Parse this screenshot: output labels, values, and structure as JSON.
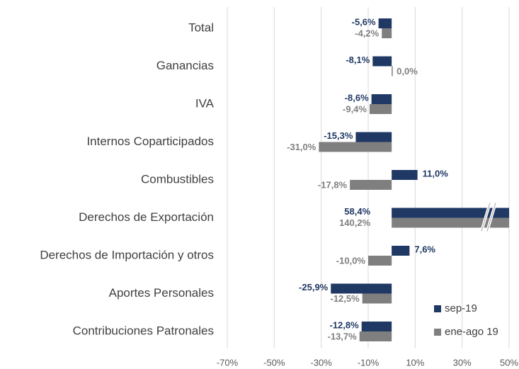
{
  "chart_data": {
    "type": "bar",
    "orientation": "horizontal",
    "categories": [
      "Total",
      "Ganancias",
      "IVA",
      "Internos Coparticipados",
      "Combustibles",
      "Derechos de Exportación",
      "Derechos de Importación y otros",
      "Aportes Personales",
      "Contribuciones Patronales"
    ],
    "series": [
      {
        "name": "sep-19",
        "color": "#1f3864",
        "values": [
          -5.6,
          -8.1,
          -8.6,
          -15.3,
          11.0,
          58.4,
          7.6,
          -25.9,
          -12.8
        ],
        "value_labels": [
          "-5,6%",
          "-8,1%",
          "-8,6%",
          "-15,3%",
          "11,0%",
          "58,4%",
          "7,6%",
          "-25,9%",
          "-12,8%"
        ]
      },
      {
        "name": "ene-ago 19",
        "color": "#7f7f7f",
        "values": [
          -4.2,
          0.0,
          -9.4,
          -31.0,
          -17.8,
          140.2,
          -10.0,
          -12.5,
          -13.7
        ],
        "value_labels": [
          "-4,2%",
          "0,0%",
          "-9,4%",
          "-31,0%",
          "-17,8%",
          "140,2%",
          "-10,0%",
          "-12,5%",
          "-13,7%"
        ]
      }
    ],
    "xlim": [
      -70,
      50
    ],
    "xticks": [
      {
        "value": -70,
        "label": "-70%"
      },
      {
        "value": -50,
        "label": "-50%"
      },
      {
        "value": -30,
        "label": "-30%"
      },
      {
        "value": -10,
        "label": "-10%"
      },
      {
        "value": 10,
        "label": "10%"
      },
      {
        "value": 30,
        "label": "30%"
      },
      {
        "value": 50,
        "label": "50%"
      }
    ],
    "grid": true,
    "legend": "lower right"
  }
}
